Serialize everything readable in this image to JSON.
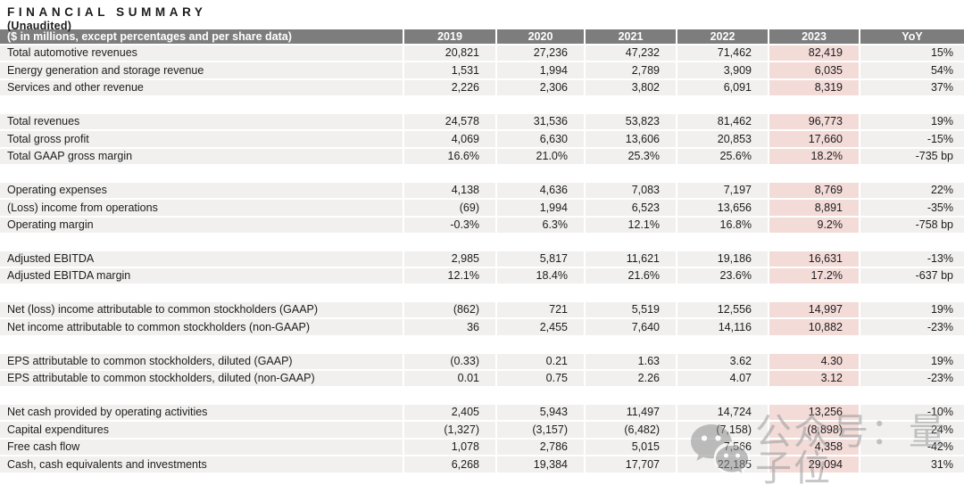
{
  "page": {
    "title": "FINANCIAL SUMMARY",
    "subtitle": "(Unaudited)"
  },
  "colors": {
    "page_bg": "#ffffff",
    "header_bg": "#7d7d7d",
    "header_text": "#ffffff",
    "row_bg": "#f1f0ef",
    "highlight": "#f3dbd8",
    "text": "#1c1c1c",
    "watermark": "#9a9a9a"
  },
  "table": {
    "header": {
      "label": "($ in millions, except percentages and per share data)",
      "columns": [
        "2019",
        "2020",
        "2021",
        "2022",
        "2023",
        "YoY"
      ]
    },
    "highlight_column": "2023",
    "sections": [
      {
        "rows": [
          {
            "label": "Total automotive revenues",
            "values": [
              "20,821",
              "27,236",
              "47,232",
              "71,462",
              "82,419",
              "15%"
            ]
          },
          {
            "label": "Energy generation and storage revenue",
            "values": [
              "1,531",
              "1,994",
              "2,789",
              "3,909",
              "6,035",
              "54%"
            ]
          },
          {
            "label": "Services and other revenue",
            "values": [
              "2,226",
              "2,306",
              "3,802",
              "6,091",
              "8,319",
              "37%"
            ]
          }
        ]
      },
      {
        "rows": [
          {
            "label": "Total revenues",
            "values": [
              "24,578",
              "31,536",
              "53,823",
              "81,462",
              "96,773",
              "19%"
            ]
          },
          {
            "label": "Total gross profit",
            "values": [
              "4,069",
              "6,630",
              "13,606",
              "20,853",
              "17,660",
              "-15%"
            ]
          },
          {
            "label": "Total GAAP gross margin",
            "values": [
              "16.6%",
              "21.0%",
              "25.3%",
              "25.6%",
              "18.2%",
              "-735 bp"
            ]
          }
        ]
      },
      {
        "rows": [
          {
            "label": "Operating expenses",
            "values": [
              "4,138",
              "4,636",
              "7,083",
              "7,197",
              "8,769",
              "22%"
            ]
          },
          {
            "label": "(Loss) income from operations",
            "values": [
              "(69)",
              "1,994",
              "6,523",
              "13,656",
              "8,891",
              "-35%"
            ]
          },
          {
            "label": "Operating margin",
            "values": [
              "-0.3%",
              "6.3%",
              "12.1%",
              "16.8%",
              "9.2%",
              "-758 bp"
            ]
          }
        ]
      },
      {
        "rows": [
          {
            "label": "Adjusted EBITDA",
            "values": [
              "2,985",
              "5,817",
              "11,621",
              "19,186",
              "16,631",
              "-13%"
            ]
          },
          {
            "label": "Adjusted EBITDA margin",
            "values": [
              "12.1%",
              "18.4%",
              "21.6%",
              "23.6%",
              "17.2%",
              "-637 bp"
            ]
          }
        ]
      },
      {
        "rows": [
          {
            "label": "Net (loss) income attributable to common stockholders (GAAP)",
            "values": [
              "(862)",
              "721",
              "5,519",
              "12,556",
              "14,997",
              "19%"
            ]
          },
          {
            "label": "Net income attributable to common stockholders (non-GAAP)",
            "values": [
              "36",
              "2,455",
              "7,640",
              "14,116",
              "10,882",
              "-23%"
            ]
          }
        ]
      },
      {
        "rows": [
          {
            "label": "EPS attributable to common stockholders, diluted (GAAP)",
            "values": [
              "(0.33)",
              "0.21",
              "1.63",
              "3.62",
              "4.30",
              "19%"
            ]
          },
          {
            "label": "EPS attributable to common stockholders, diluted (non-GAAP)",
            "values": [
              "0.01",
              "0.75",
              "2.26",
              "4.07",
              "3.12",
              "-23%"
            ]
          }
        ]
      },
      {
        "rows": [
          {
            "label": "Net cash provided by operating activities",
            "values": [
              "2,405",
              "5,943",
              "11,497",
              "14,724",
              "13,256",
              "-10%"
            ]
          },
          {
            "label": "Capital expenditures",
            "values": [
              "(1,327)",
              "(3,157)",
              "(6,482)",
              "(7,158)",
              "(8,898)",
              "24%"
            ]
          },
          {
            "label": "Free cash flow",
            "values": [
              "1,078",
              "2,786",
              "5,015",
              "7,566",
              "4,358",
              "-42%"
            ]
          },
          {
            "label": "Cash, cash equivalents and investments",
            "values": [
              "6,268",
              "19,384",
              "17,707",
              "22,185",
              "29,094",
              "31%"
            ]
          }
        ]
      }
    ]
  },
  "watermark": {
    "icon": "wechat-icon",
    "text": "公众号：量子位"
  }
}
